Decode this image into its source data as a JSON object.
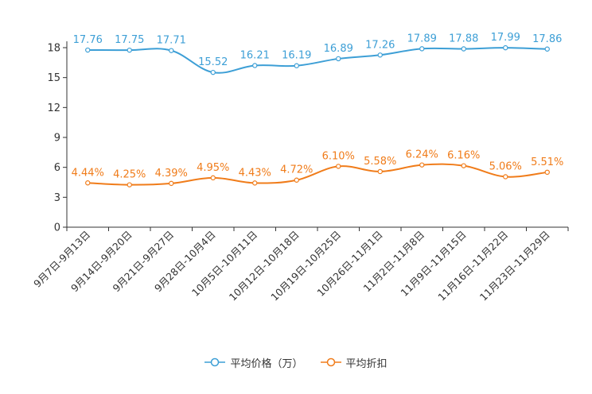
{
  "chart_data": {
    "type": "line",
    "categories": [
      "9月7日-9月13日",
      "9月14日-9月20日",
      "9月21日-9月27日",
      "9月28日-10月4日",
      "10月5日-10月11日",
      "10月12日-10月18日",
      "10月19日-10月25日",
      "10月26日-11月1日",
      "11月2日-11月8日",
      "11月9日-11月15日",
      "11月16日-11月22日",
      "11月23日-11月29日"
    ],
    "series": [
      {
        "name": "平均价格（万）",
        "color": "#3d9fd6",
        "values": [
          17.76,
          17.75,
          17.71,
          15.52,
          16.21,
          16.19,
          16.89,
          17.26,
          17.89,
          17.88,
          17.99,
          17.86
        ],
        "labels": [
          "17.76",
          "17.75",
          "17.71",
          "15.52",
          "16.21",
          "16.19",
          "16.89",
          "17.26",
          "17.89",
          "17.88",
          "17.99",
          "17.86"
        ]
      },
      {
        "name": "平均折扣",
        "color": "#f07c1a",
        "values": [
          4.44,
          4.25,
          4.39,
          4.95,
          4.43,
          4.72,
          6.1,
          5.58,
          6.24,
          6.16,
          5.06,
          5.51
        ],
        "labels": [
          "4.44%",
          "4.25%",
          "4.39%",
          "4.95%",
          "4.43%",
          "4.72%",
          "6.10%",
          "5.58%",
          "6.24%",
          "6.16%",
          "5.06%",
          "5.51%"
        ]
      }
    ],
    "y_ticks": [
      "0",
      "3",
      "6",
      "9",
      "12",
      "15",
      "18"
    ],
    "ylim": [
      0,
      18
    ],
    "grid": false,
    "legend_position": "bottom-center"
  }
}
